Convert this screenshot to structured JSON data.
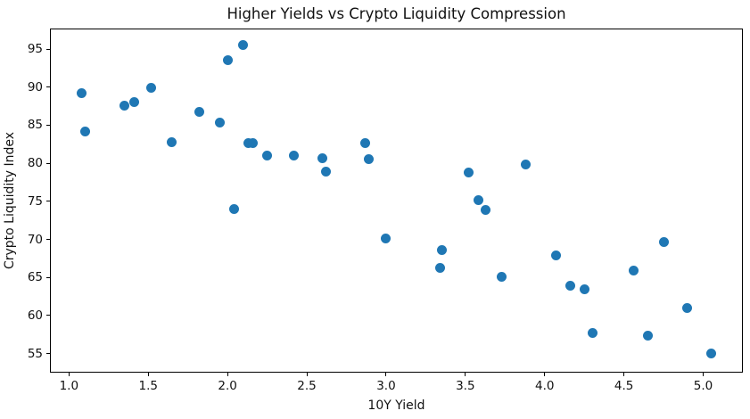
{
  "chart_data": {
    "type": "scatter",
    "title": "Higher Yields vs Crypto Liquidity Compression",
    "xlabel": "10Y Yield",
    "ylabel": "Crypto Liquidity Index",
    "xlim": [
      0.88,
      5.25
    ],
    "ylim": [
      52.5,
      97.7
    ],
    "grid": false,
    "legend": "none",
    "marker_color": "#1f77b4",
    "background_color": "#ffffff",
    "xticks": [
      {
        "v": 1.0,
        "label": "1.0"
      },
      {
        "v": 1.5,
        "label": "1.5"
      },
      {
        "v": 2.0,
        "label": "2.0"
      },
      {
        "v": 2.5,
        "label": "2.5"
      },
      {
        "v": 3.0,
        "label": "3.0"
      },
      {
        "v": 3.5,
        "label": "3.5"
      },
      {
        "v": 4.0,
        "label": "4.0"
      },
      {
        "v": 4.5,
        "label": "4.5"
      },
      {
        "v": 5.0,
        "label": "5.0"
      }
    ],
    "yticks": [
      {
        "v": 55,
        "label": "55"
      },
      {
        "v": 60,
        "label": "60"
      },
      {
        "v": 65,
        "label": "65"
      },
      {
        "v": 70,
        "label": "70"
      },
      {
        "v": 75,
        "label": "75"
      },
      {
        "v": 80,
        "label": "80"
      },
      {
        "v": 85,
        "label": "85"
      },
      {
        "v": 90,
        "label": "90"
      },
      {
        "v": 95,
        "label": "95"
      }
    ],
    "points": [
      [
        1.08,
        89.2
      ],
      [
        1.1,
        84.2
      ],
      [
        1.35,
        87.6
      ],
      [
        1.41,
        88.0
      ],
      [
        1.52,
        89.9
      ],
      [
        1.65,
        82.8
      ],
      [
        1.82,
        86.8
      ],
      [
        1.95,
        85.3
      ],
      [
        2.0,
        93.5
      ],
      [
        2.04,
        74.0
      ],
      [
        2.1,
        95.5
      ],
      [
        2.13,
        82.6
      ],
      [
        2.16,
        82.6
      ],
      [
        2.25,
        81.0
      ],
      [
        2.42,
        81.0
      ],
      [
        2.6,
        80.7
      ],
      [
        2.62,
        78.9
      ],
      [
        2.87,
        82.7
      ],
      [
        2.89,
        80.6
      ],
      [
        3.0,
        70.1
      ],
      [
        3.34,
        66.3
      ],
      [
        3.35,
        68.6
      ],
      [
        3.52,
        78.8
      ],
      [
        3.58,
        75.2
      ],
      [
        3.63,
        73.9
      ],
      [
        3.73,
        65.1
      ],
      [
        3.88,
        79.9
      ],
      [
        4.07,
        67.9
      ],
      [
        4.16,
        63.9
      ],
      [
        4.25,
        63.5
      ],
      [
        4.3,
        57.7
      ],
      [
        4.56,
        65.9
      ],
      [
        4.65,
        57.4
      ],
      [
        4.75,
        69.7
      ],
      [
        4.9,
        61.0
      ],
      [
        5.05,
        55.0
      ]
    ]
  }
}
